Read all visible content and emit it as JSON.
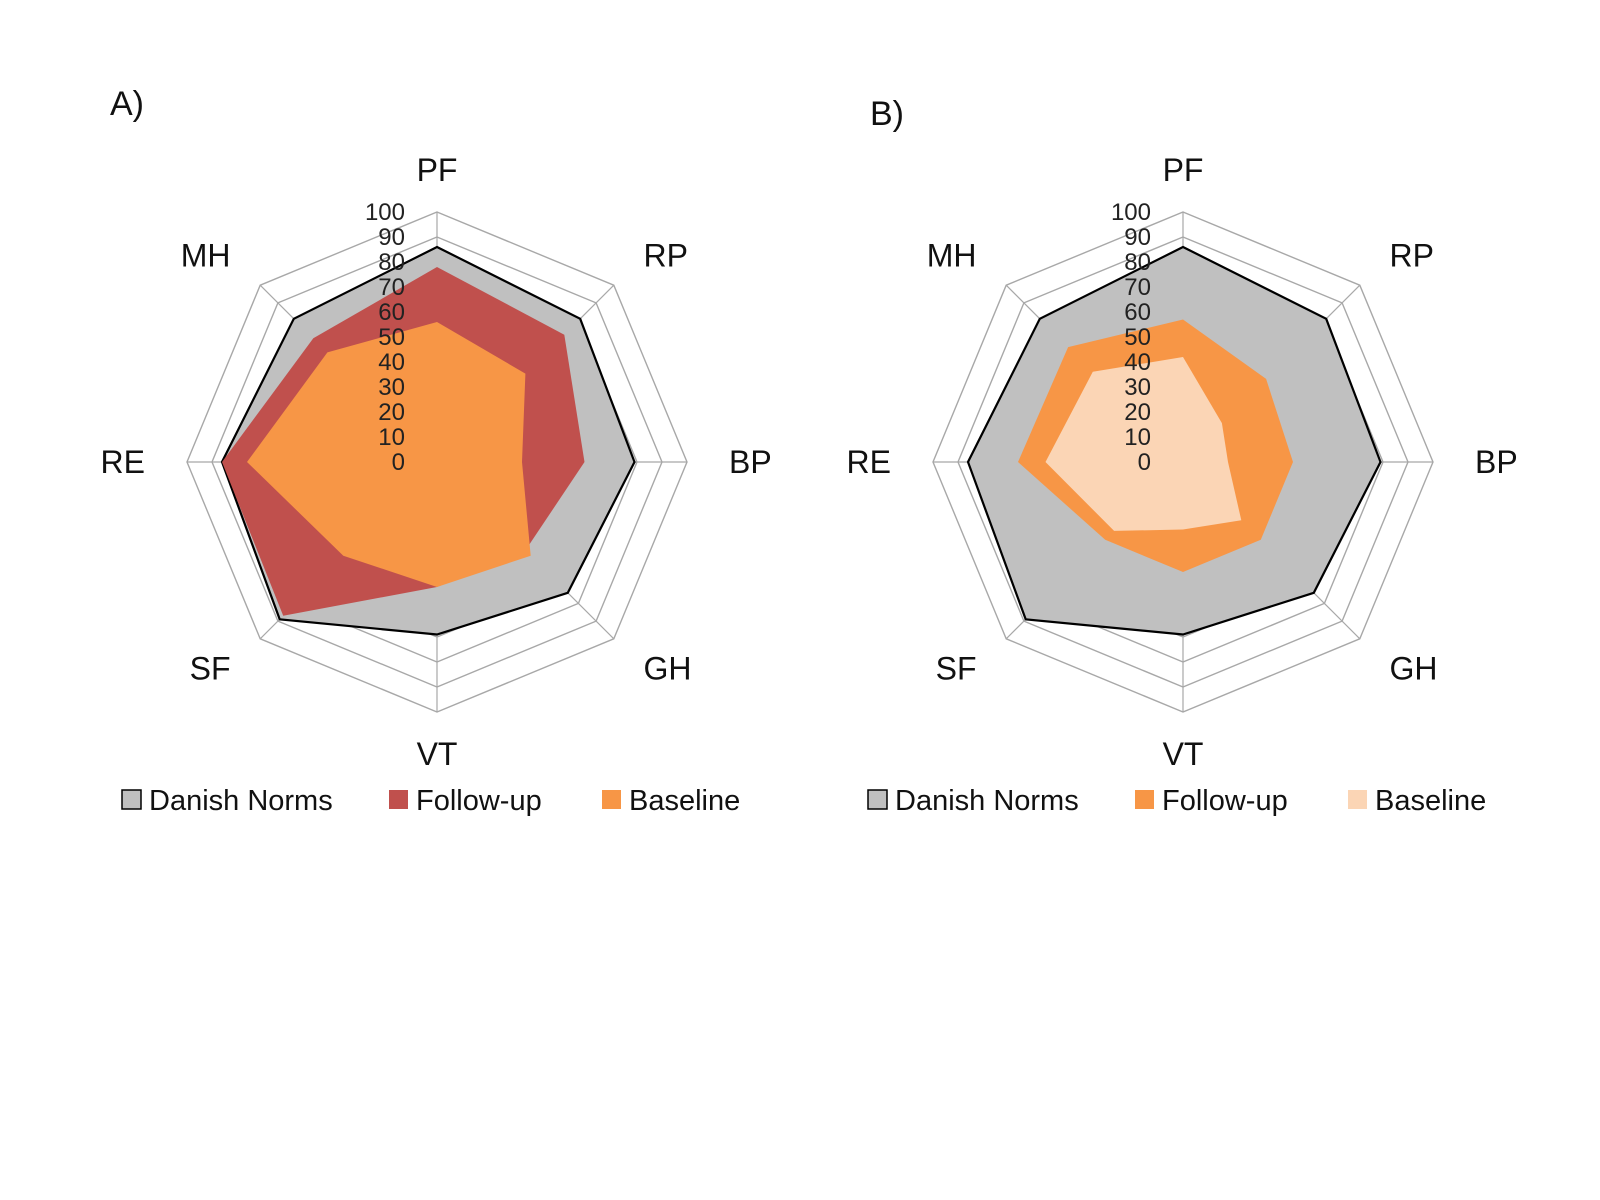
{
  "figure": {
    "background": "#ffffff"
  },
  "chart_data": [
    {
      "type": "radar",
      "panel_label": "A)",
      "categories": [
        "PF",
        "RP",
        "BP",
        "GH",
        "VT",
        "SF",
        "RE",
        "MH"
      ],
      "ylim": [
        0,
        100
      ],
      "tick_values": [
        0,
        10,
        20,
        30,
        40,
        50,
        60,
        70,
        80,
        90,
        100
      ],
      "tick_labels": [
        "0",
        "10",
        "20",
        "30",
        "40",
        "50",
        "60",
        "70",
        "80",
        "90",
        "100"
      ],
      "legend_position": "bottom",
      "series": [
        {
          "name": "Danish Norms",
          "fill": "#c0c0c0",
          "stroke": "#000000",
          "values": [
            86,
            81,
            79,
            74,
            69,
            89,
            86,
            81
          ]
        },
        {
          "name": "Follow-up",
          "fill": "#c0504d",
          "stroke": "none",
          "values": [
            78,
            72,
            59,
            50,
            50,
            87,
            86,
            70
          ]
        },
        {
          "name": "Baseline",
          "fill": "#f79646",
          "stroke": "none",
          "values": [
            56,
            50,
            34,
            53,
            50,
            53,
            76,
            62
          ]
        }
      ]
    },
    {
      "type": "radar",
      "panel_label": "B)",
      "categories": [
        "PF",
        "RP",
        "BP",
        "GH",
        "VT",
        "SF",
        "RE",
        "MH"
      ],
      "ylim": [
        0,
        100
      ],
      "tick_values": [
        0,
        10,
        20,
        30,
        40,
        50,
        60,
        70,
        80,
        90,
        100
      ],
      "tick_labels": [
        "0",
        "10",
        "20",
        "30",
        "40",
        "50",
        "60",
        "70",
        "80",
        "90",
        "100"
      ],
      "legend_position": "bottom",
      "series": [
        {
          "name": "Danish Norms",
          "fill": "#c0c0c0",
          "stroke": "#000000",
          "values": [
            86,
            81,
            79,
            74,
            69,
            89,
            86,
            81
          ]
        },
        {
          "name": "Follow-up",
          "fill": "#f79646",
          "stroke": "none",
          "values": [
            57,
            47,
            44,
            44,
            44,
            44,
            66,
            65
          ]
        },
        {
          "name": "Baseline",
          "fill": "#fbd5b5",
          "stroke": "none",
          "values": [
            42,
            22,
            18,
            33,
            27,
            39,
            55,
            51
          ]
        }
      ]
    }
  ]
}
